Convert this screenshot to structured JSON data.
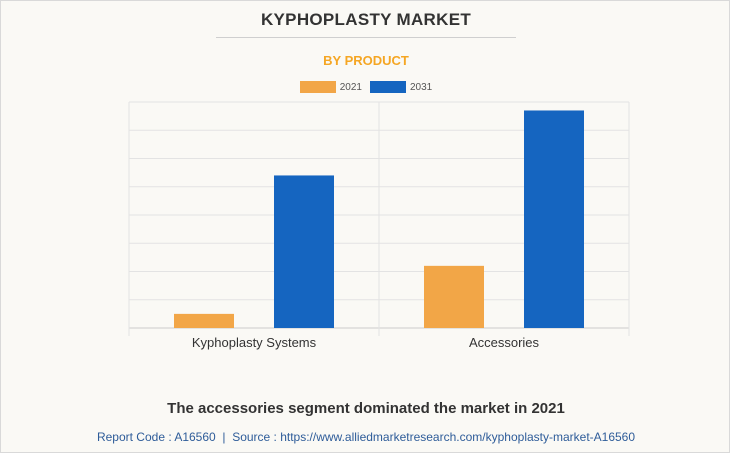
{
  "header": {
    "title": "KYPHOPLASTY MARKET",
    "subtitle": "BY PRODUCT"
  },
  "colors": {
    "series_2021": "#f2a647",
    "series_2031": "#1565c0",
    "subtitle": "#f5a623",
    "footer_text": "#2e5c99"
  },
  "chart_data": {
    "type": "bar",
    "categories": [
      "Kyphoplasty Systems",
      "Accessories"
    ],
    "series": [
      {
        "name": "2021",
        "values": [
          0.5,
          2.2
        ]
      },
      {
        "name": "2031",
        "values": [
          5.4,
          7.7
        ]
      }
    ],
    "ylim": [
      0,
      8
    ],
    "grid": true,
    "legend": "top-center"
  },
  "footer": {
    "caption": "The accessories segment dominated the market in 2021",
    "report_code": "Report Code : A16560",
    "separator": "|",
    "source": "Source : https://www.alliedmarketresearch.com/kyphoplasty-market-A16560"
  }
}
